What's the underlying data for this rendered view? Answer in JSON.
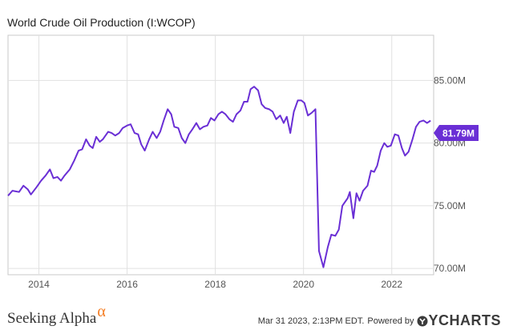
{
  "chart_data": {
    "type": "line",
    "title": "World Crude Oil Production (I:WCOP)",
    "x_ticks": [
      "2014",
      "2016",
      "2018",
      "2020",
      "2022"
    ],
    "y_ticks": [
      "70.00M",
      "75.00M",
      "80.00M",
      "85.00M"
    ],
    "ylim": [
      69.5,
      88.6
    ],
    "xlim": [
      2013.3,
      2022.95
    ],
    "grid": true,
    "last_value_label": "81.79M",
    "series": [
      {
        "color": "#6a2fd5",
        "points": [
          [
            2013.3,
            75.8
          ],
          [
            2013.4,
            76.2
          ],
          [
            2013.55,
            76.1
          ],
          [
            2013.65,
            76.6
          ],
          [
            2013.75,
            76.3
          ],
          [
            2013.82,
            75.9
          ],
          [
            2013.95,
            76.5
          ],
          [
            2014.05,
            77.0
          ],
          [
            2014.15,
            77.4
          ],
          [
            2014.25,
            77.9
          ],
          [
            2014.33,
            77.2
          ],
          [
            2014.42,
            77.3
          ],
          [
            2014.5,
            77.0
          ],
          [
            2014.58,
            77.4
          ],
          [
            2014.7,
            77.9
          ],
          [
            2014.8,
            78.6
          ],
          [
            2014.9,
            79.4
          ],
          [
            2014.98,
            79.5
          ],
          [
            2015.07,
            80.3
          ],
          [
            2015.15,
            79.8
          ],
          [
            2015.22,
            79.6
          ],
          [
            2015.3,
            80.5
          ],
          [
            2015.38,
            80.1
          ],
          [
            2015.45,
            80.3
          ],
          [
            2015.57,
            80.9
          ],
          [
            2015.65,
            80.8
          ],
          [
            2015.73,
            80.6
          ],
          [
            2015.82,
            80.8
          ],
          [
            2015.9,
            81.2
          ],
          [
            2016.0,
            81.4
          ],
          [
            2016.08,
            81.5
          ],
          [
            2016.17,
            80.8
          ],
          [
            2016.25,
            80.7
          ],
          [
            2016.32,
            79.9
          ],
          [
            2016.4,
            79.4
          ],
          [
            2016.5,
            80.3
          ],
          [
            2016.58,
            80.9
          ],
          [
            2016.67,
            80.4
          ],
          [
            2016.75,
            80.9
          ],
          [
            2016.83,
            81.8
          ],
          [
            2016.92,
            82.7
          ],
          [
            2017.0,
            82.3
          ],
          [
            2017.07,
            81.3
          ],
          [
            2017.16,
            81.2
          ],
          [
            2017.24,
            80.4
          ],
          [
            2017.32,
            80.0
          ],
          [
            2017.4,
            80.7
          ],
          [
            2017.48,
            81.1
          ],
          [
            2017.57,
            81.6
          ],
          [
            2017.65,
            81.1
          ],
          [
            2017.73,
            81.3
          ],
          [
            2017.82,
            81.4
          ],
          [
            2017.9,
            82.0
          ],
          [
            2017.98,
            81.8
          ],
          [
            2018.07,
            82.3
          ],
          [
            2018.15,
            82.5
          ],
          [
            2018.23,
            82.3
          ],
          [
            2018.32,
            81.9
          ],
          [
            2018.4,
            81.7
          ],
          [
            2018.48,
            82.3
          ],
          [
            2018.57,
            82.6
          ],
          [
            2018.65,
            83.3
          ],
          [
            2018.73,
            83.3
          ],
          [
            2018.8,
            84.3
          ],
          [
            2018.88,
            84.5
          ],
          [
            2018.97,
            84.2
          ],
          [
            2019.05,
            83.1
          ],
          [
            2019.13,
            82.8
          ],
          [
            2019.22,
            82.7
          ],
          [
            2019.3,
            82.5
          ],
          [
            2019.38,
            81.9
          ],
          [
            2019.47,
            82.2
          ],
          [
            2019.55,
            81.6
          ],
          [
            2019.62,
            82.1
          ],
          [
            2019.7,
            80.8
          ],
          [
            2019.78,
            82.5
          ],
          [
            2019.87,
            83.4
          ],
          [
            2019.95,
            83.4
          ],
          [
            2020.02,
            83.2
          ],
          [
            2020.1,
            82.2
          ],
          [
            2020.18,
            82.4
          ],
          [
            2020.27,
            82.7
          ],
          [
            2020.35,
            71.4
          ],
          [
            2020.45,
            70.1
          ],
          [
            2020.55,
            71.7
          ],
          [
            2020.63,
            72.7
          ],
          [
            2020.72,
            72.6
          ],
          [
            2020.8,
            73.1
          ],
          [
            2020.88,
            75.0
          ],
          [
            2021.0,
            75.6
          ],
          [
            2021.05,
            76.1
          ],
          [
            2021.13,
            74.0
          ],
          [
            2021.2,
            76.0
          ],
          [
            2021.27,
            75.4
          ],
          [
            2021.35,
            76.2
          ],
          [
            2021.45,
            76.6
          ],
          [
            2021.53,
            77.8
          ],
          [
            2021.6,
            77.7
          ],
          [
            2021.67,
            78.2
          ],
          [
            2021.75,
            79.4
          ],
          [
            2021.83,
            80.0
          ],
          [
            2021.9,
            79.7
          ],
          [
            2021.98,
            79.8
          ],
          [
            2022.07,
            80.7
          ],
          [
            2022.15,
            80.6
          ],
          [
            2022.23,
            79.6
          ],
          [
            2022.3,
            79.0
          ],
          [
            2022.38,
            79.3
          ],
          [
            2022.47,
            80.3
          ],
          [
            2022.55,
            81.3
          ],
          [
            2022.63,
            81.7
          ],
          [
            2022.72,
            81.8
          ],
          [
            2022.8,
            81.6
          ],
          [
            2022.88,
            81.79
          ]
        ]
      }
    ]
  },
  "footer": {
    "brand_left": "Seeking Alpha",
    "brand_left_symbol": "α",
    "timestamp": "Mar 31 2023, 2:13PM EDT.",
    "powered_by": "Powered by",
    "brand_right": "YCHARTS"
  }
}
